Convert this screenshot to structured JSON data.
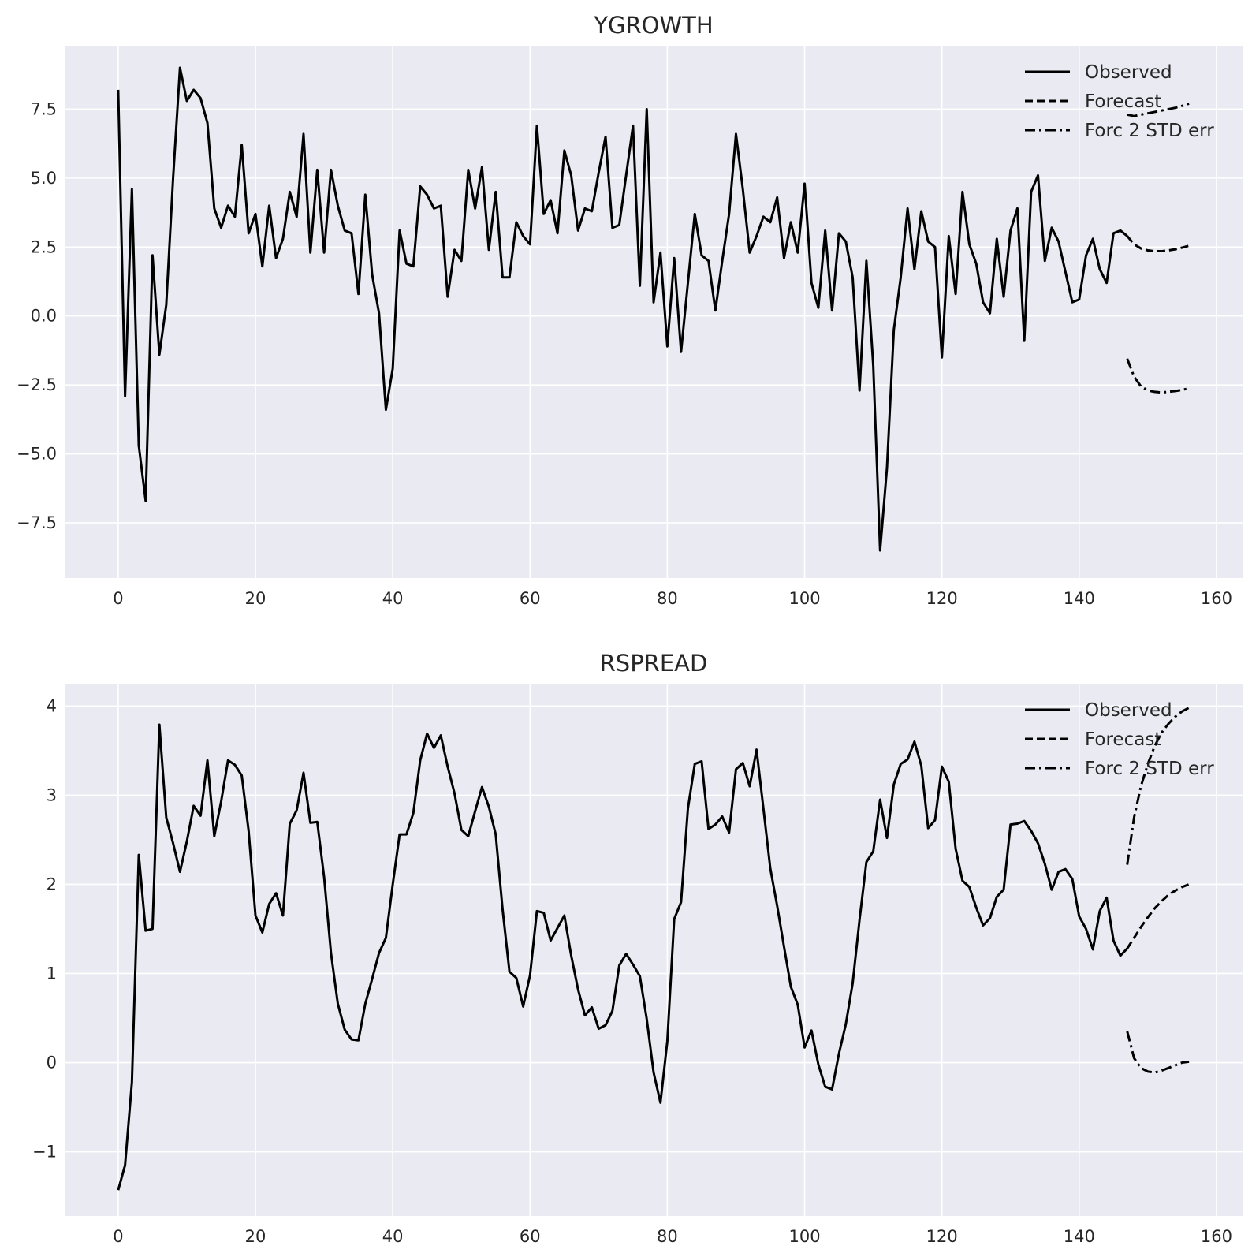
{
  "chart_data": [
    {
      "type": "line",
      "title": "YGROWTH",
      "xlabel": "",
      "ylabel": "",
      "xlim": [
        -7.8,
        163.8
      ],
      "ylim": [
        -9.5,
        9.8
      ],
      "xticks": [
        0,
        20,
        40,
        60,
        80,
        100,
        120,
        140,
        160
      ],
      "xtick_labels": [
        "0",
        "20",
        "40",
        "60",
        "80",
        "100",
        "120",
        "140",
        "160"
      ],
      "yticks": [
        -7.5,
        -5.0,
        -2.5,
        0.0,
        2.5,
        5.0,
        7.5
      ],
      "ytick_labels": [
        "−7.5",
        "−5.0",
        "−2.5",
        "0.0",
        "2.5",
        "5.0",
        "7.5"
      ],
      "grid": true,
      "legend": "top-right",
      "series": [
        {
          "name": "Observed",
          "style": "solid",
          "color": "#000000",
          "x_start": 0,
          "values": [
            8.2,
            -2.9,
            4.6,
            -4.7,
            -6.7,
            2.2,
            -1.4,
            0.4,
            5.0,
            9.0,
            7.8,
            8.2,
            7.9,
            7.0,
            3.9,
            3.2,
            4.0,
            3.6,
            6.2,
            3.0,
            3.7,
            1.8,
            4.0,
            2.1,
            2.8,
            4.5,
            3.6,
            6.6,
            2.3,
            5.3,
            2.3,
            5.3,
            4.0,
            3.1,
            3.0,
            0.8,
            4.4,
            1.5,
            0.1,
            -3.4,
            -1.9,
            3.1,
            1.9,
            1.8,
            4.7,
            4.4,
            3.9,
            4.0,
            0.7,
            2.4,
            2.0,
            5.3,
            3.9,
            5.4,
            2.4,
            4.5,
            1.4,
            1.4,
            3.4,
            2.9,
            2.6,
            6.9,
            3.7,
            4.2,
            3.0,
            6.0,
            5.1,
            3.1,
            3.9,
            3.8,
            5.2,
            6.5,
            3.2,
            3.3,
            5.1,
            6.9,
            1.1,
            7.5,
            0.5,
            2.3,
            -1.1,
            2.1,
            -1.3,
            1.2,
            3.7,
            2.2,
            2.0,
            0.2,
            2.0,
            3.7,
            6.6,
            4.6,
            2.3,
            2.9,
            3.6,
            3.4,
            4.3,
            2.1,
            3.4,
            2.3,
            4.8,
            1.2,
            0.3,
            3.1,
            0.2,
            3.0,
            2.7,
            1.4,
            -2.7,
            2.0,
            -1.8,
            -8.5,
            -5.5,
            -0.5,
            1.4,
            3.9,
            1.7,
            3.8,
            2.7,
            2.5,
            -1.5,
            2.9,
            0.8,
            4.5,
            2.6,
            1.9,
            0.5,
            0.1,
            2.8,
            0.7,
            3.1,
            3.9,
            -0.9,
            4.5,
            5.1,
            2.0,
            3.2,
            2.7,
            1.6,
            0.5,
            0.6,
            2.2,
            2.8,
            1.7,
            1.2,
            3.0,
            3.1,
            2.9
          ]
        },
        {
          "name": "Forecast",
          "style": "dashed",
          "color": "#000000",
          "x_start": 147,
          "values": [
            2.9,
            2.6,
            2.45,
            2.38,
            2.35,
            2.35,
            2.38,
            2.42,
            2.48,
            2.55
          ]
        },
        {
          "name": "Forc 2 STD err",
          "style": "dashdot",
          "color": "#000000",
          "x_start": 147,
          "values": [
            7.3,
            7.25,
            7.3,
            7.35,
            7.4,
            7.45,
            7.5,
            7.55,
            7.62,
            7.7
          ],
          "lower_values": [
            -1.55,
            -2.2,
            -2.55,
            -2.7,
            -2.75,
            -2.77,
            -2.75,
            -2.72,
            -2.68,
            -2.62
          ]
        }
      ]
    },
    {
      "type": "line",
      "title": "RSPREAD",
      "xlabel": "",
      "ylabel": "",
      "xlim": [
        -7.8,
        163.8
      ],
      "ylim": [
        -1.72,
        4.25
      ],
      "xticks": [
        0,
        20,
        40,
        60,
        80,
        100,
        120,
        140,
        160
      ],
      "xtick_labels": [
        "0",
        "20",
        "40",
        "60",
        "80",
        "100",
        "120",
        "140",
        "160"
      ],
      "yticks": [
        -1,
        0,
        1,
        2,
        3,
        4
      ],
      "ytick_labels": [
        "−1",
        "0",
        "1",
        "2",
        "3",
        "4"
      ],
      "grid": true,
      "legend": "top-right",
      "series": [
        {
          "name": "Observed",
          "style": "solid",
          "color": "#000000",
          "x_start": 0,
          "values": [
            -1.43,
            -1.15,
            -0.22,
            2.33,
            1.48,
            1.5,
            3.79,
            2.75,
            2.46,
            2.14,
            2.48,
            2.88,
            2.77,
            3.39,
            2.54,
            2.93,
            3.39,
            3.34,
            3.22,
            2.6,
            1.65,
            1.46,
            1.78,
            1.9,
            1.65,
            2.68,
            2.83,
            3.25,
            2.69,
            2.7,
            2.08,
            1.23,
            0.66,
            0.37,
            0.26,
            0.25,
            0.66,
            0.94,
            1.23,
            1.4,
            2.0,
            2.56,
            2.56,
            2.8,
            3.39,
            3.69,
            3.53,
            3.67,
            3.32,
            3.02,
            2.61,
            2.54,
            2.82,
            3.09,
            2.87,
            2.56,
            1.72,
            1.02,
            0.95,
            0.63,
            0.98,
            1.7,
            1.68,
            1.37,
            1.51,
            1.65,
            1.2,
            0.82,
            0.53,
            0.62,
            0.38,
            0.42,
            0.58,
            1.09,
            1.22,
            1.1,
            0.97,
            0.49,
            -0.11,
            -0.45,
            0.24,
            1.61,
            1.8,
            2.85,
            3.35,
            3.38,
            2.62,
            2.67,
            2.76,
            2.58,
            3.29,
            3.36,
            3.1,
            3.51,
            2.85,
            2.18,
            1.76,
            1.3,
            0.85,
            0.65,
            0.17,
            0.36,
            -0.02,
            -0.27,
            -0.3,
            0.1,
            0.43,
            0.89,
            1.6,
            2.25,
            2.37,
            2.95,
            2.52,
            3.12,
            3.35,
            3.4,
            3.6,
            3.33,
            2.63,
            2.72,
            3.32,
            3.15,
            2.4,
            2.04,
            1.97,
            1.74,
            1.54,
            1.62,
            1.86,
            1.94,
            2.67,
            2.68,
            2.71,
            2.6,
            2.46,
            2.23,
            1.94,
            2.14,
            2.17,
            2.06,
            1.64,
            1.5,
            1.27,
            1.7,
            1.85,
            1.37,
            1.2,
            1.28
          ]
        },
        {
          "name": "Forecast",
          "style": "dashed",
          "color": "#000000",
          "x_start": 147,
          "values": [
            1.28,
            1.4,
            1.52,
            1.63,
            1.73,
            1.81,
            1.88,
            1.93,
            1.97,
            2.0
          ]
        },
        {
          "name": "Forc 2 STD err",
          "style": "dashdot",
          "color": "#000000",
          "x_start": 147,
          "values": [
            2.22,
            2.75,
            3.1,
            3.35,
            3.55,
            3.7,
            3.8,
            3.88,
            3.94,
            3.98
          ],
          "lower_values": [
            0.35,
            0.05,
            -0.06,
            -0.1,
            -0.11,
            -0.09,
            -0.06,
            -0.03,
            0.0,
            0.01
          ]
        }
      ]
    }
  ]
}
